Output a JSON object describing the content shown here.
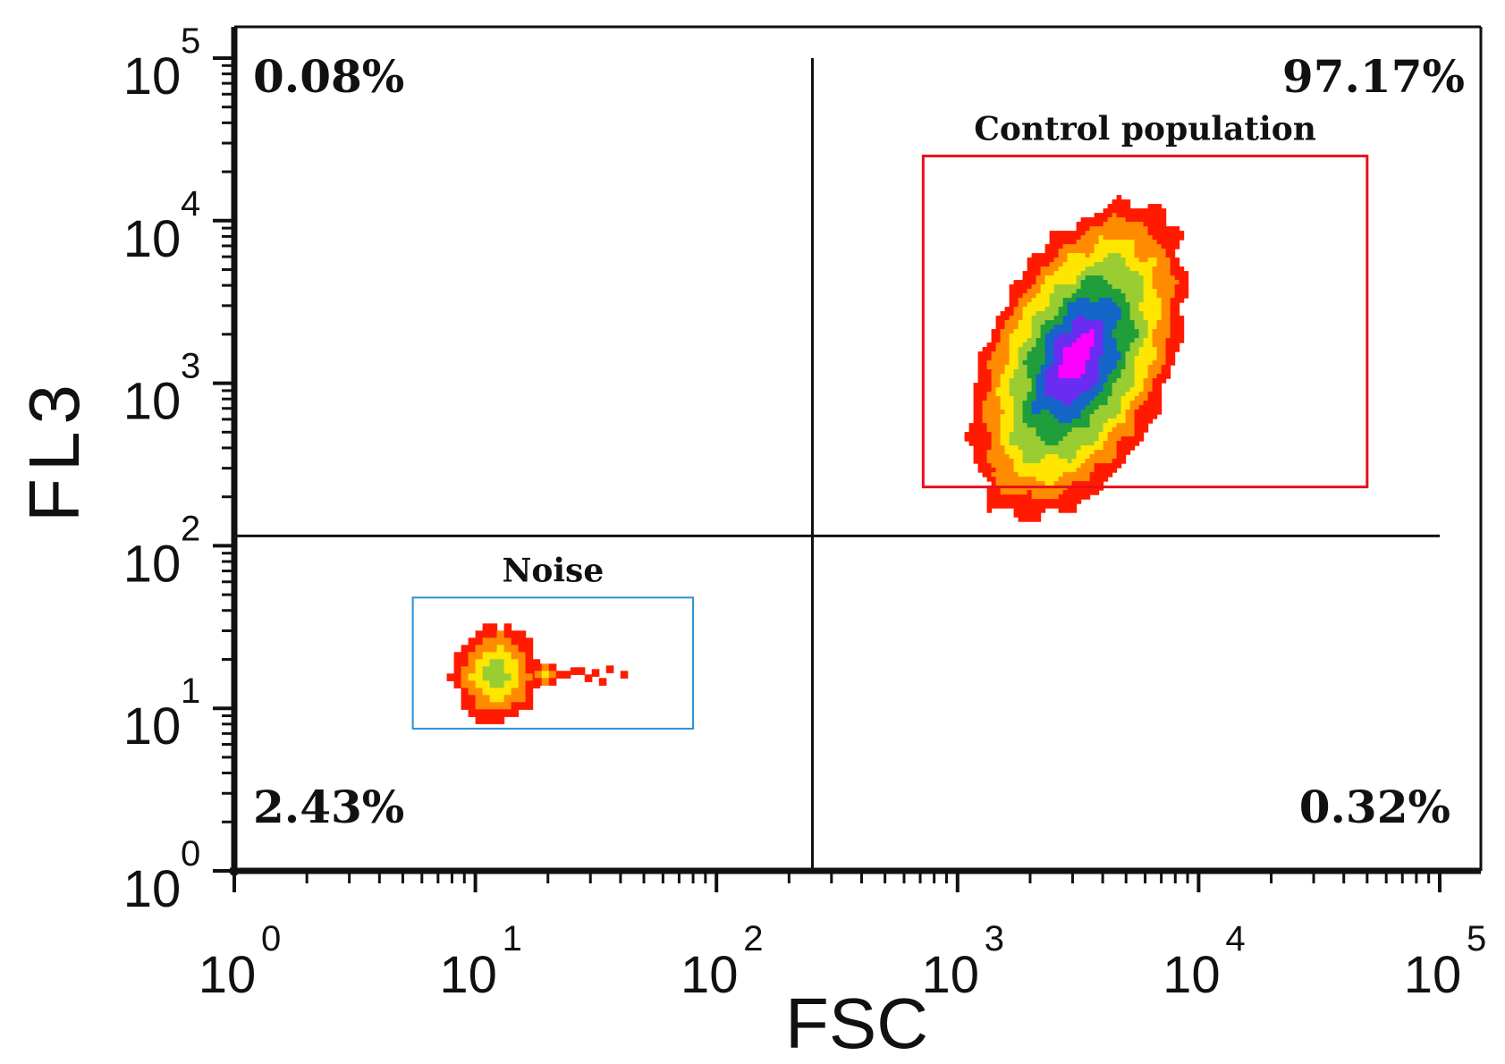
{
  "chart_data": {
    "type": "scatter",
    "subtype": "flow-cytometry density plot (log-log)",
    "xlabel": "FSC",
    "ylabel": "FL3",
    "xscale": "log",
    "yscale": "log",
    "xlim": [
      1,
      100000
    ],
    "ylim": [
      1,
      100000
    ],
    "tick_base": "10",
    "tick_exponents": [
      "0",
      "1",
      "2",
      "3",
      "4",
      "5"
    ],
    "quadrant_divider": {
      "x": 250,
      "y": 115
    },
    "quadrants": [
      {
        "position": "top-left",
        "label": "0.08%"
      },
      {
        "position": "top-right",
        "label": "97.17%"
      },
      {
        "position": "bottom-left",
        "label": "2.43%"
      },
      {
        "position": "bottom-right",
        "label": "0.32%"
      }
    ],
    "gates": [
      {
        "name": "Control population",
        "color": "#e8101a",
        "x_range": [
          720,
          50000
        ],
        "y_range": [
          230,
          25000
        ]
      },
      {
        "name": "Noise",
        "color": "#2a8fd8",
        "x_range": [
          5.5,
          80
        ],
        "y_range": [
          7.5,
          48
        ]
      }
    ],
    "populations": [
      {
        "name": "control",
        "center": [
          3300,
          1650
        ],
        "peak_density": "high",
        "approx_x_range": [
          1000,
          6500
        ],
        "approx_y_range": [
          250,
          10000
        ]
      },
      {
        "name": "noise",
        "center": [
          11,
          17
        ],
        "peak_density": "medium",
        "approx_x_range": [
          7.5,
          30
        ],
        "approx_y_range": [
          8,
          35
        ]
      }
    ],
    "density_colors": [
      "#ff1a00",
      "#ff8c00",
      "#ffe600",
      "#9acd32",
      "#1f9e3a",
      "#1565c8",
      "#6a2cf0",
      "#ff00ff"
    ]
  }
}
